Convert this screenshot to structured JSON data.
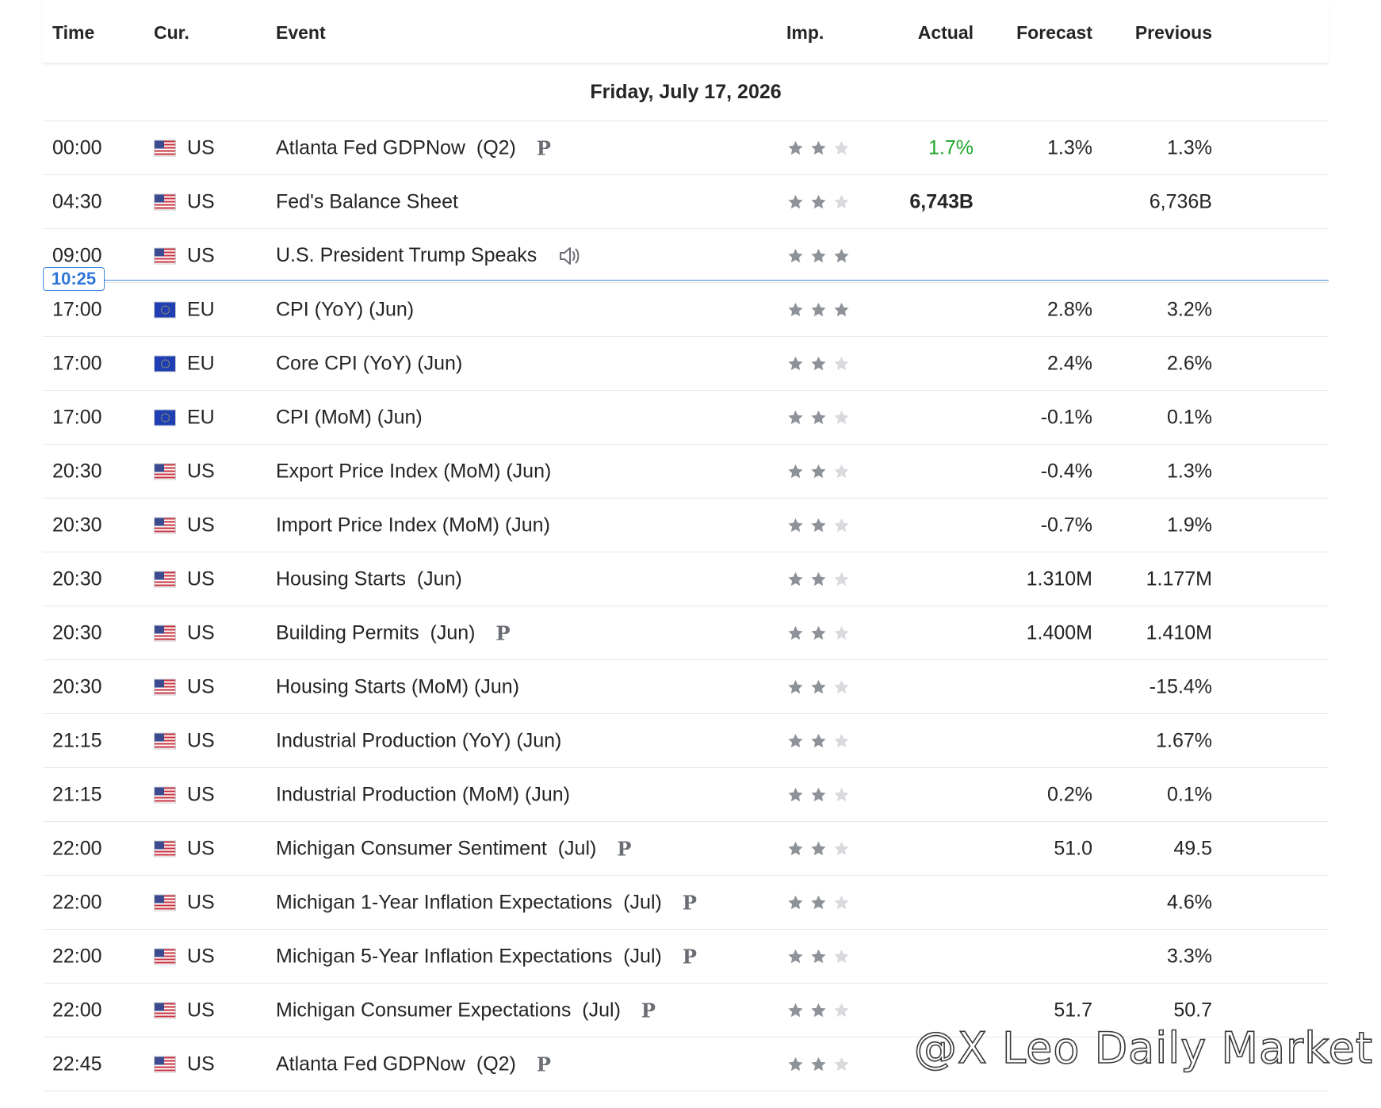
{
  "columns": {
    "time": "Time",
    "currency": "Cur.",
    "event": "Event",
    "importance": "Imp.",
    "actual": "Actual",
    "forecast": "Forecast",
    "previous": "Previous"
  },
  "date_header": "Friday, July 17, 2026",
  "current_time_marker": "10:25",
  "icons": {
    "star_filled_color": "#8e9299",
    "star_empty_color": "#d8dadd",
    "actual_positive_color": "#1fa62e",
    "now_line_color": "#3f86e0"
  },
  "rows": [
    {
      "time": "00:00",
      "currency": "US",
      "flag": "us-flag-icon",
      "event": "Atlanta Fed GDPNow  (Q2)",
      "prelim": "P",
      "importance": 2,
      "actual": "1.7%",
      "actual_style": "green",
      "forecast": "1.3%",
      "previous": "1.3%"
    },
    {
      "time": "04:30",
      "currency": "US",
      "flag": "us-flag-icon",
      "event": "Fed's Balance Sheet",
      "prelim": "",
      "importance": 2,
      "actual": "6,743B",
      "actual_style": "bold",
      "forecast": "",
      "previous": "6,736B"
    },
    {
      "time": "09:00",
      "currency": "US",
      "flag": "us-flag-icon",
      "event": "U.S. President Trump Speaks",
      "prelim": "",
      "speech": true,
      "importance": 3,
      "actual": "",
      "actual_style": "",
      "forecast": "",
      "previous": ""
    },
    {
      "time": "17:00",
      "currency": "EU",
      "flag": "eu-flag-icon",
      "event": "CPI (YoY) (Jun)",
      "prelim": "",
      "importance": 3,
      "actual": "",
      "actual_style": "",
      "forecast": "2.8%",
      "previous": "3.2%"
    },
    {
      "time": "17:00",
      "currency": "EU",
      "flag": "eu-flag-icon",
      "event": "Core CPI (YoY) (Jun)",
      "prelim": "",
      "importance": 2,
      "actual": "",
      "actual_style": "",
      "forecast": "2.4%",
      "previous": "2.6%"
    },
    {
      "time": "17:00",
      "currency": "EU",
      "flag": "eu-flag-icon",
      "event": "CPI (MoM) (Jun)",
      "prelim": "",
      "importance": 2,
      "actual": "",
      "actual_style": "",
      "forecast": "-0.1%",
      "previous": "0.1%"
    },
    {
      "time": "20:30",
      "currency": "US",
      "flag": "us-flag-icon",
      "event": "Export Price Index (MoM) (Jun)",
      "prelim": "",
      "importance": 2,
      "actual": "",
      "actual_style": "",
      "forecast": "-0.4%",
      "previous": "1.3%"
    },
    {
      "time": "20:30",
      "currency": "US",
      "flag": "us-flag-icon",
      "event": "Import Price Index (MoM) (Jun)",
      "prelim": "",
      "importance": 2,
      "actual": "",
      "actual_style": "",
      "forecast": "-0.7%",
      "previous": "1.9%"
    },
    {
      "time": "20:30",
      "currency": "US",
      "flag": "us-flag-icon",
      "event": "Housing Starts  (Jun)",
      "prelim": "",
      "importance": 2,
      "actual": "",
      "actual_style": "",
      "forecast": "1.310M",
      "previous": "1.177M"
    },
    {
      "time": "20:30",
      "currency": "US",
      "flag": "us-flag-icon",
      "event": "Building Permits  (Jun)",
      "prelim": "P",
      "importance": 2,
      "actual": "",
      "actual_style": "",
      "forecast": "1.400M",
      "previous": "1.410M"
    },
    {
      "time": "20:30",
      "currency": "US",
      "flag": "us-flag-icon",
      "event": "Housing Starts (MoM) (Jun)",
      "prelim": "",
      "importance": 2,
      "actual": "",
      "actual_style": "",
      "forecast": "",
      "previous": "-15.4%"
    },
    {
      "time": "21:15",
      "currency": "US",
      "flag": "us-flag-icon",
      "event": "Industrial Production (YoY) (Jun)",
      "prelim": "",
      "importance": 2,
      "actual": "",
      "actual_style": "",
      "forecast": "",
      "previous": "1.67%"
    },
    {
      "time": "21:15",
      "currency": "US",
      "flag": "us-flag-icon",
      "event": "Industrial Production (MoM) (Jun)",
      "prelim": "",
      "importance": 2,
      "actual": "",
      "actual_style": "",
      "forecast": "0.2%",
      "previous": "0.1%"
    },
    {
      "time": "22:00",
      "currency": "US",
      "flag": "us-flag-icon",
      "event": "Michigan Consumer Sentiment  (Jul)",
      "prelim": "P",
      "importance": 2,
      "actual": "",
      "actual_style": "",
      "forecast": "51.0",
      "previous": "49.5"
    },
    {
      "time": "22:00",
      "currency": "US",
      "flag": "us-flag-icon",
      "event": "Michigan 1-Year Inflation Expectations  (Jul)",
      "prelim": "P",
      "importance": 2,
      "actual": "",
      "actual_style": "",
      "forecast": "",
      "previous": "4.6%"
    },
    {
      "time": "22:00",
      "currency": "US",
      "flag": "us-flag-icon",
      "event": "Michigan 5-Year Inflation Expectations  (Jul)",
      "prelim": "P",
      "importance": 2,
      "actual": "",
      "actual_style": "",
      "forecast": "",
      "previous": "3.3%"
    },
    {
      "time": "22:00",
      "currency": "US",
      "flag": "us-flag-icon",
      "event": "Michigan Consumer Expectations  (Jul)",
      "prelim": "P",
      "importance": 2,
      "actual": "",
      "actual_style": "",
      "forecast": "51.7",
      "previous": "50.7"
    },
    {
      "time": "22:45",
      "currency": "US",
      "flag": "us-flag-icon",
      "event": "Atlanta Fed GDPNow  (Q2)",
      "prelim": "P",
      "importance": 2,
      "actual": "",
      "actual_style": "",
      "forecast": "",
      "previous": ""
    }
  ],
  "watermark": "@X Leo Daily Market"
}
